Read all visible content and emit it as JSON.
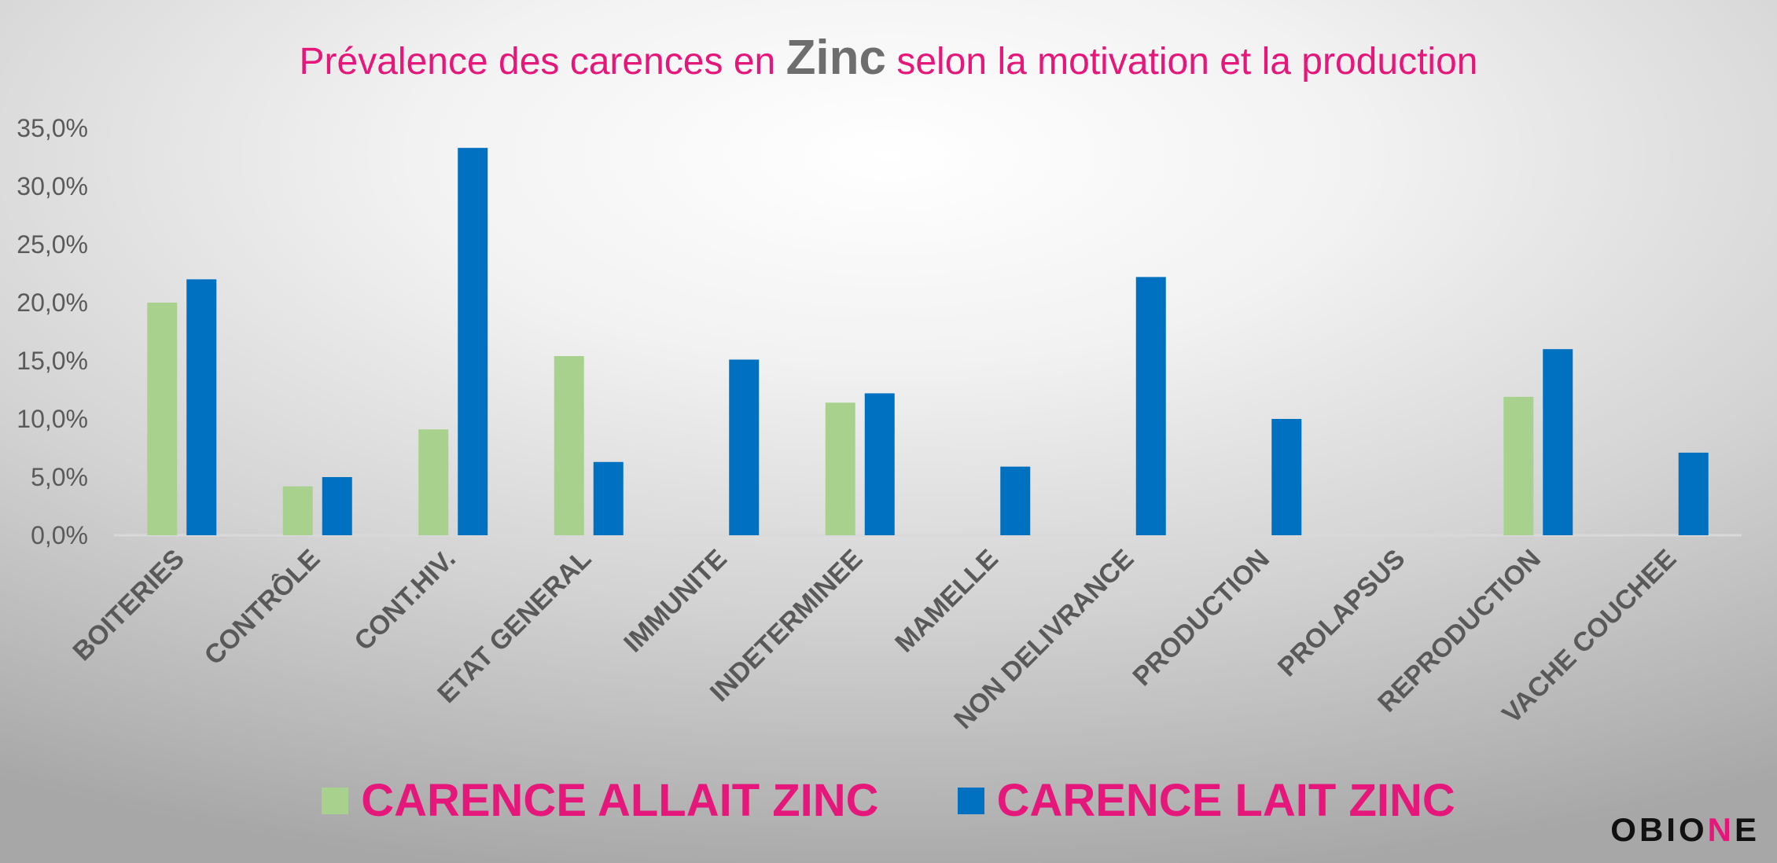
{
  "title": {
    "before": "Prévalence des carences en ",
    "highlight": "Zinc",
    "after": " selon la motivation et la production"
  },
  "colors": {
    "title": "#e5177b",
    "series_allait": "#a9d18e",
    "series_lait": "#0070c0",
    "axis": "#d9d9d9",
    "text": "#595959"
  },
  "chart_data": {
    "type": "bar",
    "title": "Prévalence des carences en Zinc selon la motivation et la production",
    "categories": [
      "BOITERIES",
      "CONTRÔLE",
      "CONT.HIV.",
      "ETAT GENERAL",
      "IMMUNITE",
      "INDETERMINEE",
      "MAMELLE",
      "NON DELIVRANCE",
      "PRODUCTION",
      "PROLAPSUS",
      "REPRODUCTION",
      "VACHE COUCHEE"
    ],
    "series": [
      {
        "name": "CARENCE ALLAIT ZINC",
        "values": [
          20.0,
          4.2,
          9.1,
          15.4,
          0,
          11.4,
          0,
          0,
          0,
          0,
          11.9,
          0
        ]
      },
      {
        "name": "CARENCE LAIT ZINC",
        "values": [
          22.0,
          5.0,
          33.3,
          6.3,
          15.1,
          12.2,
          5.9,
          22.2,
          10.0,
          0,
          16.0,
          7.1
        ]
      }
    ],
    "yticks": [
      "0,0%",
      "5,0%",
      "10,0%",
      "15,0%",
      "20,0%",
      "25,0%",
      "30,0%",
      "35,0%"
    ],
    "ylim": [
      0,
      35
    ],
    "grid": false,
    "legend_position": "bottom"
  },
  "logo": {
    "text_before": "OBIO",
    "accent": "N",
    "text_after": "E"
  }
}
